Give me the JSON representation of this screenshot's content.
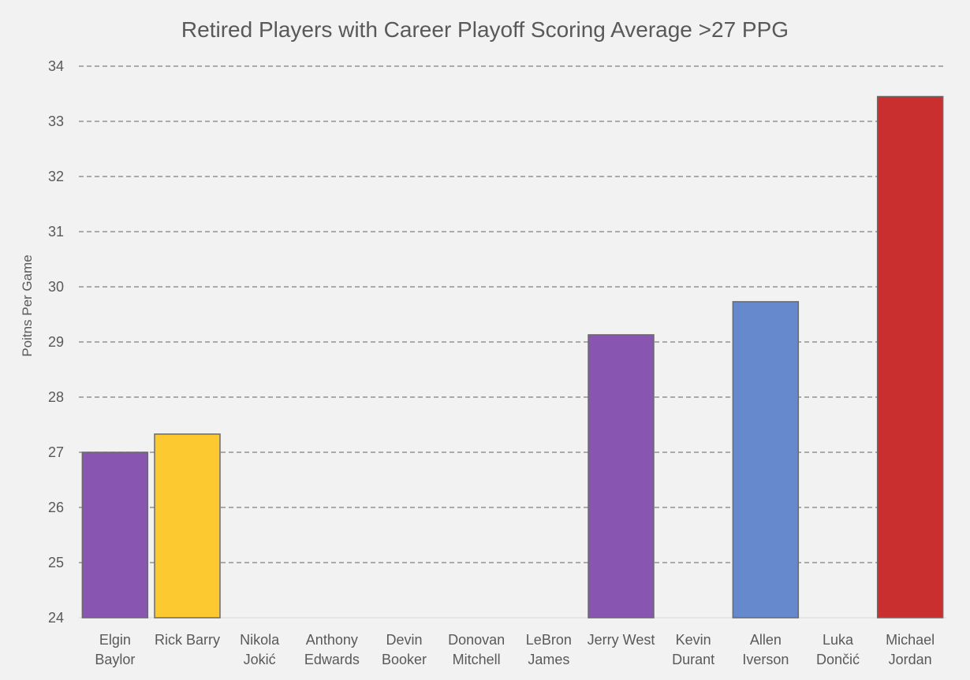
{
  "chart_data": {
    "type": "bar",
    "title": "Retired Players with Career Playoff Scoring Average >27 PPG",
    "xlabel": "",
    "ylabel": "Poitns Per Game",
    "ylim": [
      24,
      34
    ],
    "yticks": [
      "24",
      "25",
      "26",
      "27",
      "28",
      "29",
      "30",
      "31",
      "32",
      "33",
      "34"
    ],
    "grid": "horizontal dashed",
    "legend": "none",
    "categories": [
      [
        "Elgin",
        "Baylor"
      ],
      [
        "Rick Barry"
      ],
      [
        "Nikola",
        "Jokić"
      ],
      [
        "Anthony",
        "Edwards"
      ],
      [
        "Devin",
        "Booker"
      ],
      [
        "Donovan",
        "Mitchell"
      ],
      [
        "LeBron",
        "James"
      ],
      [
        "Jerry West"
      ],
      [
        "Kevin",
        "Durant"
      ],
      [
        "Allen",
        "Iverson"
      ],
      [
        "Luka",
        "Dončić"
      ],
      [
        "Michael",
        "Jordan"
      ]
    ],
    "values": [
      27.0,
      27.33,
      null,
      null,
      null,
      null,
      null,
      29.13,
      null,
      29.73,
      null,
      33.45
    ],
    "bar_colors": [
      "#8855b0",
      "#fdc931",
      null,
      null,
      null,
      null,
      null,
      "#8855b0",
      null,
      "#6589cc",
      null,
      "#c92f2f"
    ]
  }
}
